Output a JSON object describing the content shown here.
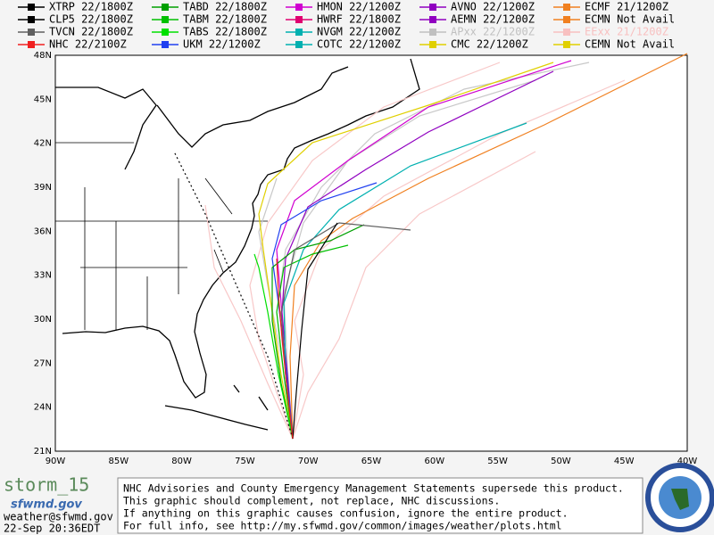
{
  "legend": [
    {
      "label": "XTRP  22/1800Z",
      "color": "#000000"
    },
    {
      "label": "TABD  22/1800Z",
      "color": "#00a000"
    },
    {
      "label": "HMON  22/1200Z",
      "color": "#d000d0"
    },
    {
      "label": "AVNO  22/1200Z",
      "color": "#9000c0"
    },
    {
      "label": "ECMF  21/1200Z",
      "color": "#f08020"
    },
    {
      "label": "CLP5  22/1800Z",
      "color": "#000000"
    },
    {
      "label": "TABM  22/1800Z",
      "color": "#00c000"
    },
    {
      "label": "HWRF  22/1800Z",
      "color": "#e00070"
    },
    {
      "label": "AEMN  22/1200Z",
      "color": "#9000c0"
    },
    {
      "label": "ECMN  Not Avail",
      "color": "#f08020"
    },
    {
      "label": "TVCN  22/1800Z",
      "color": "#606060"
    },
    {
      "label": "TABS  22/1800Z",
      "color": "#00e000"
    },
    {
      "label": "NVGM  22/1200Z",
      "color": "#00b0b0"
    },
    {
      "label": "APxx  22/1200Z",
      "color": "#c0c0c0"
    },
    {
      "label": "EExx  21/1200Z",
      "color": "#f8c0c0"
    },
    {
      "label": "NHC  22/2100Z",
      "color": "#f02020"
    },
    {
      "label": "UKM   22/1200Z",
      "color": "#2040f0"
    },
    {
      "label": "COTC  22/1200Z",
      "color": "#00b0b0"
    },
    {
      "label": "CMC   22/1200Z",
      "color": "#e0d000"
    },
    {
      "label": "CEMN  Not Avail",
      "color": "#e0d000"
    }
  ],
  "lat_labels": [
    "48N",
    "45N",
    "42N",
    "39N",
    "36N",
    "33N",
    "30N",
    "27N",
    "24N",
    "21N"
  ],
  "lon_labels": [
    "90W",
    "85W",
    "80W",
    "75W",
    "70W",
    "65W",
    "60W",
    "55W",
    "50W",
    "45W",
    "40W"
  ],
  "footer": {
    "storm": "storm_15",
    "site": "sfwmd.gov",
    "email": "weather@sfwmd.gov",
    "timestamp": "22-Sep 20:36EDT",
    "notice": [
      "NHC Advisories and County Emergency Management Statements supersede this product.",
      "This graphic should complement, not replace, NHC discussions.",
      "If anything on this graphic causes confusion, ignore the entire product.",
      "For full info, see  http://my.sfwmd.gov/common/images/weather/plots.html"
    ]
  }
}
